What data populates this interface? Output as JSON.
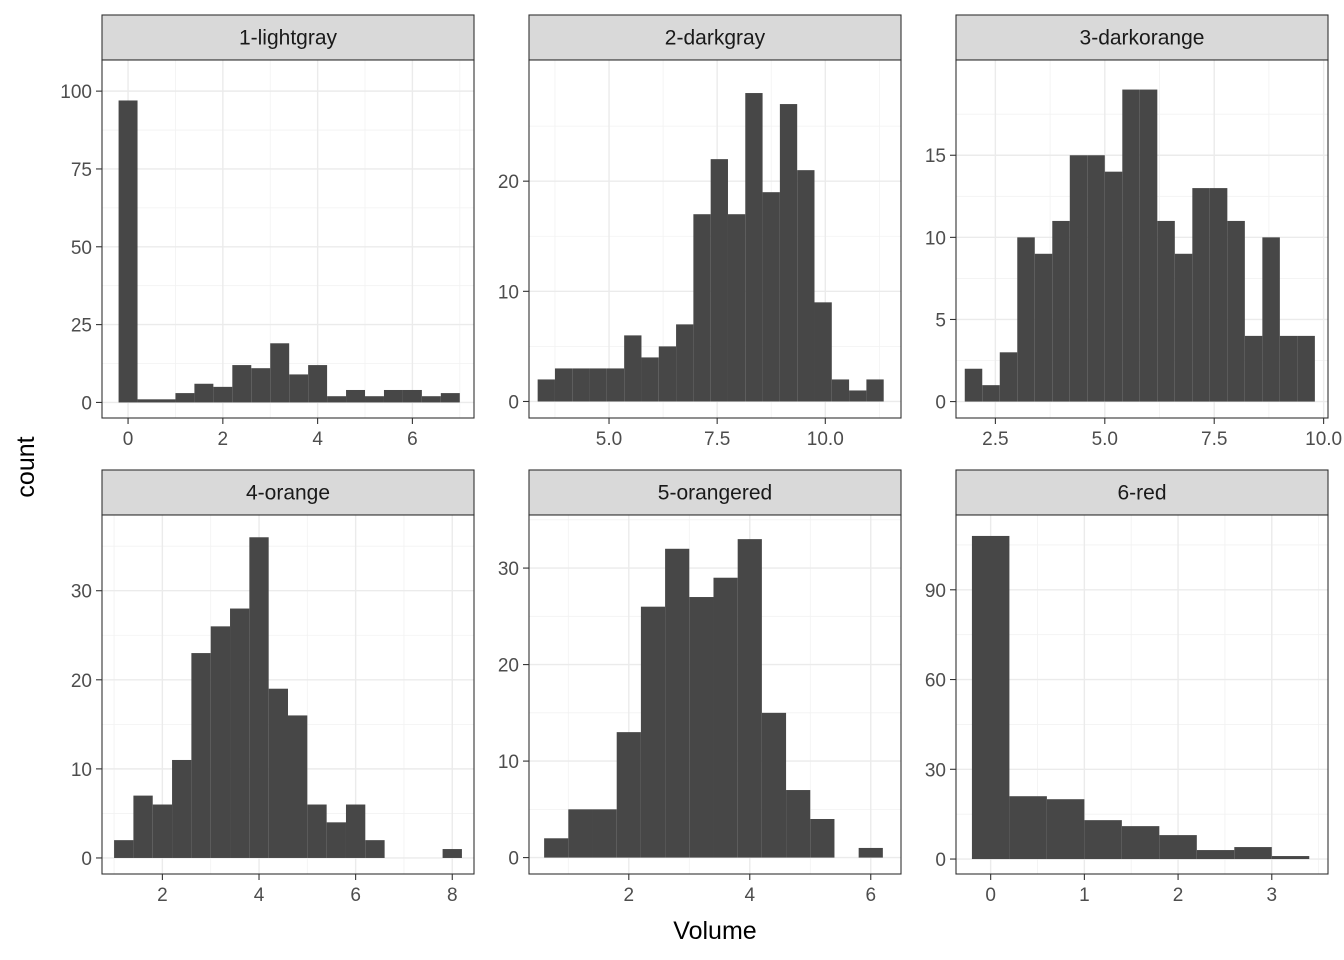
{
  "xlabel": "Volume",
  "ylabel": "count",
  "chart_data": [
    {
      "type": "bar",
      "title": "1-lightgray",
      "xlim": [
        -0.55,
        7.3
      ],
      "ylim": [
        -5,
        110
      ],
      "xticks": [
        0,
        2,
        4,
        6
      ],
      "xtick_labels": [
        "0",
        "2",
        "4",
        "6"
      ],
      "yticks": [
        0,
        25,
        50,
        75,
        100
      ],
      "ytick_labels": [
        "0",
        "25",
        "50",
        "75",
        "100"
      ],
      "bin_edges": [
        -0.2,
        0.2,
        0.6,
        1.0,
        1.4,
        1.8,
        2.2,
        2.6,
        3.0,
        3.4,
        3.8,
        4.2,
        4.6,
        5.0,
        5.4,
        5.8,
        6.2,
        6.6,
        7.0
      ],
      "counts": [
        97,
        1,
        1,
        3,
        6,
        5,
        12,
        11,
        19,
        9,
        12,
        2,
        4,
        2,
        4,
        4,
        2,
        3
      ]
    },
    {
      "type": "bar",
      "title": "2-darkgray",
      "xlim": [
        3.15,
        11.75
      ],
      "ylim": [
        -1.5,
        31
      ],
      "xticks": [
        5,
        7.5,
        10
      ],
      "xtick_labels": [
        "5.0",
        "7.5",
        "10.0"
      ],
      "yticks": [
        0,
        10,
        20
      ],
      "ytick_labels": [
        "0",
        "10",
        "20"
      ],
      "bin_edges": [
        3.35,
        3.75,
        4.15,
        4.55,
        4.95,
        5.35,
        5.75,
        6.15,
        6.55,
        6.95,
        7.35,
        7.75,
        8.15,
        8.55,
        8.95,
        9.35,
        9.75,
        10.15,
        10.55,
        10.95,
        11.35
      ],
      "counts": [
        2,
        3,
        3,
        3,
        3,
        6,
        4,
        5,
        7,
        17,
        22,
        17,
        28,
        19,
        27,
        21,
        9,
        2,
        1,
        2
      ]
    },
    {
      "type": "bar",
      "title": "3-darkorange",
      "xlim": [
        1.6,
        10.1
      ],
      "ylim": [
        -1,
        20.8
      ],
      "xticks": [
        2.5,
        5,
        7.5,
        10
      ],
      "xtick_labels": [
        "2.5",
        "5.0",
        "7.5",
        "10.0"
      ],
      "yticks": [
        0,
        5,
        10,
        15
      ],
      "ytick_labels": [
        "0",
        "5",
        "10",
        "15"
      ],
      "bin_edges": [
        1.8,
        2.2,
        2.6,
        3.0,
        3.4,
        3.8,
        4.2,
        4.6,
        5.0,
        5.4,
        5.8,
        6.2,
        6.6,
        7.0,
        7.4,
        7.8,
        8.2,
        8.6,
        9.0,
        9.4,
        9.8
      ],
      "counts": [
        2,
        1,
        3,
        10,
        9,
        11,
        15,
        15,
        14,
        19,
        19,
        11,
        9,
        13,
        13,
        11,
        4,
        10,
        4,
        4
      ]
    },
    {
      "type": "bar",
      "title": "4-orange",
      "xlim": [
        0.75,
        8.45
      ],
      "ylim": [
        -1.8,
        38.5
      ],
      "xticks": [
        2,
        4,
        6,
        8
      ],
      "xtick_labels": [
        "2",
        "4",
        "6",
        "8"
      ],
      "yticks": [
        0,
        10,
        20,
        30
      ],
      "ytick_labels": [
        "0",
        "10",
        "20",
        "30"
      ],
      "bin_edges": [
        1.0,
        1.4,
        1.8,
        2.2,
        2.6,
        3.0,
        3.4,
        3.8,
        4.2,
        4.6,
        5.0,
        5.4,
        5.8,
        6.2,
        6.6,
        7.0,
        7.4,
        7.8,
        8.2
      ],
      "counts": [
        2,
        7,
        6,
        11,
        23,
        26,
        28,
        36,
        19,
        16,
        6,
        4,
        6,
        2,
        0,
        0,
        0,
        1
      ]
    },
    {
      "type": "bar",
      "title": "5-orangered",
      "xlim": [
        0.35,
        6.5
      ],
      "ylim": [
        -1.7,
        35.5
      ],
      "xticks": [
        2,
        4,
        6
      ],
      "xtick_labels": [
        "2",
        "4",
        "6"
      ],
      "yticks": [
        0,
        10,
        20,
        30
      ],
      "ytick_labels": [
        "0",
        "10",
        "20",
        "30"
      ],
      "bin_edges": [
        0.6,
        1.0,
        1.4,
        1.8,
        2.2,
        2.6,
        3.0,
        3.4,
        3.8,
        4.2,
        4.6,
        5.0,
        5.4,
        5.8,
        6.2
      ],
      "counts": [
        2,
        5,
        5,
        13,
        26,
        32,
        27,
        29,
        33,
        15,
        7,
        4,
        0,
        1
      ]
    },
    {
      "type": "bar",
      "title": "6-red",
      "xlim": [
        -0.37,
        3.6
      ],
      "ylim": [
        -5,
        115
      ],
      "xticks": [
        0,
        1,
        2,
        3
      ],
      "xtick_labels": [
        "0",
        "1",
        "2",
        "3"
      ],
      "yticks": [
        0,
        30,
        60,
        90
      ],
      "ytick_labels": [
        "0",
        "30",
        "60",
        "90"
      ],
      "bin_edges": [
        -0.2,
        0.2,
        0.6,
        1.0,
        1.4,
        1.8,
        2.2,
        2.6,
        3.0,
        3.4
      ],
      "counts": [
        108,
        21,
        20,
        13,
        11,
        8,
        3,
        4,
        1
      ]
    }
  ]
}
